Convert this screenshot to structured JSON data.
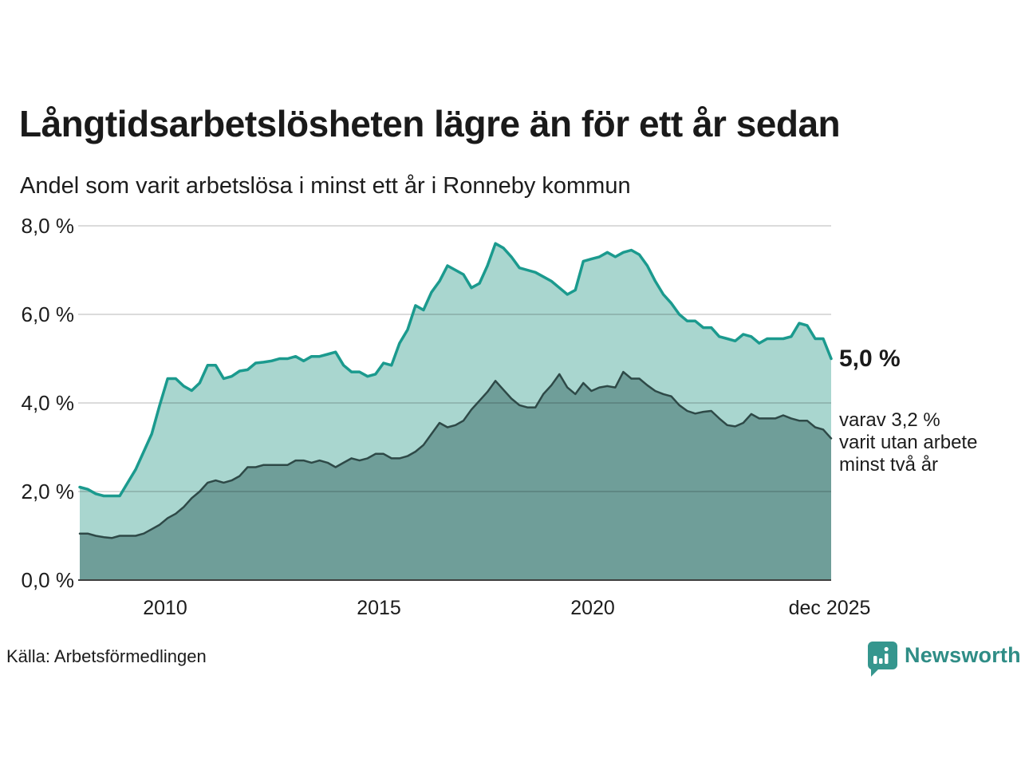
{
  "header": {
    "title": "Långtidsarbetslösheten lägre än för ett år sedan",
    "subtitle": "Andel som varit arbetslösa i minst ett år i Ronneby kommun"
  },
  "chart_data": {
    "type": "area",
    "title": "Långtidsarbetslösheten lägre än för ett år sedan",
    "subtitle": "Andel som varit arbetslösa i minst ett år i Ronneby kommun",
    "unit": "%",
    "ylim": [
      0,
      8
    ],
    "grid": true,
    "x_start_year": 2008,
    "x_end_year": 2026,
    "yticks": [
      {
        "value": 8,
        "label": "8,0 %"
      },
      {
        "value": 6,
        "label": "6,0 %"
      },
      {
        "value": 4,
        "label": "4,0 %"
      },
      {
        "value": 2,
        "label": "2,0 %"
      },
      {
        "value": 0,
        "label": "0,0 %"
      }
    ],
    "xticks": [
      {
        "year": 2010,
        "label": "2010"
      },
      {
        "year": 2015,
        "label": "2015"
      },
      {
        "year": 2020,
        "label": "2020"
      },
      {
        "year": 2025.92,
        "label": "dec 2025"
      }
    ],
    "series": [
      {
        "name": "Andel som varit arbetslösa i minst ett år",
        "line_color": "#1b9a8e",
        "fill_color": "#a9d6cf",
        "end_value": 5.0,
        "values": [
          2.1,
          2.05,
          1.95,
          1.9,
          1.9,
          1.9,
          2.2,
          2.5,
          2.9,
          3.3,
          3.95,
          4.55,
          4.55,
          4.38,
          4.28,
          4.45,
          4.85,
          4.85,
          4.55,
          4.6,
          4.72,
          4.75,
          4.9,
          4.92,
          4.95,
          5.0,
          5.0,
          5.05,
          4.95,
          5.05,
          5.05,
          5.1,
          5.15,
          4.85,
          4.7,
          4.7,
          4.6,
          4.65,
          4.9,
          4.85,
          5.35,
          5.65,
          6.2,
          6.1,
          6.5,
          6.75,
          7.1,
          7.0,
          6.9,
          6.6,
          6.7,
          7.1,
          7.6,
          7.5,
          7.3,
          7.05,
          7.0,
          6.95,
          6.85,
          6.75,
          6.6,
          6.45,
          6.55,
          7.2,
          7.25,
          7.3,
          7.4,
          7.3,
          7.4,
          7.45,
          7.35,
          7.1,
          6.75,
          6.45,
          6.25,
          6.0,
          5.85,
          5.85,
          5.7,
          5.7,
          5.5,
          5.45,
          5.4,
          5.55,
          5.5,
          5.35,
          5.45,
          5.45,
          5.45,
          5.5,
          5.8,
          5.75,
          5.45,
          5.45,
          5.0
        ]
      },
      {
        "name": "varav utan arbete minst två år",
        "line_color": "#2e4947",
        "fill_color": "#6f9e99",
        "end_value": 3.2,
        "values": [
          1.05,
          1.05,
          1.0,
          0.97,
          0.95,
          1.0,
          1.0,
          1.0,
          1.05,
          1.15,
          1.25,
          1.4,
          1.5,
          1.65,
          1.85,
          2.0,
          2.2,
          2.25,
          2.2,
          2.25,
          2.35,
          2.55,
          2.55,
          2.6,
          2.6,
          2.6,
          2.6,
          2.7,
          2.7,
          2.65,
          2.7,
          2.65,
          2.55,
          2.65,
          2.75,
          2.7,
          2.75,
          2.85,
          2.85,
          2.75,
          2.75,
          2.8,
          2.9,
          3.05,
          3.3,
          3.55,
          3.45,
          3.5,
          3.6,
          3.85,
          4.05,
          4.25,
          4.5,
          4.3,
          4.1,
          3.95,
          3.9,
          3.9,
          4.2,
          4.4,
          4.65,
          4.35,
          4.2,
          4.45,
          4.27,
          4.35,
          4.38,
          4.35,
          4.7,
          4.55,
          4.55,
          4.4,
          4.27,
          4.2,
          4.15,
          3.95,
          3.82,
          3.76,
          3.8,
          3.82,
          3.65,
          3.5,
          3.47,
          3.55,
          3.75,
          3.65,
          3.65,
          3.65,
          3.72,
          3.65,
          3.6,
          3.6,
          3.45,
          3.4,
          3.2
        ]
      }
    ],
    "annotations": {
      "end_value_label": "5,0 %",
      "series2_lines": [
        "varav 3,2 %",
        "varit utan arbete",
        "minst två år"
      ]
    },
    "legend_position": "right-annotations"
  },
  "footer": {
    "source": "Källa: Arbetsförmedlingen",
    "logo_text": "Newsworthy"
  },
  "colors": {
    "line_1year": "#1b9a8e",
    "fill_1year": "#a9d6cf",
    "line_2year": "#2e4947",
    "fill_2year": "#6f9e99",
    "gridline": "#d9d9d9",
    "axis_baseline": "#3f3f3f",
    "logo_teal": "#35968e",
    "text": "#1a1a1a"
  }
}
